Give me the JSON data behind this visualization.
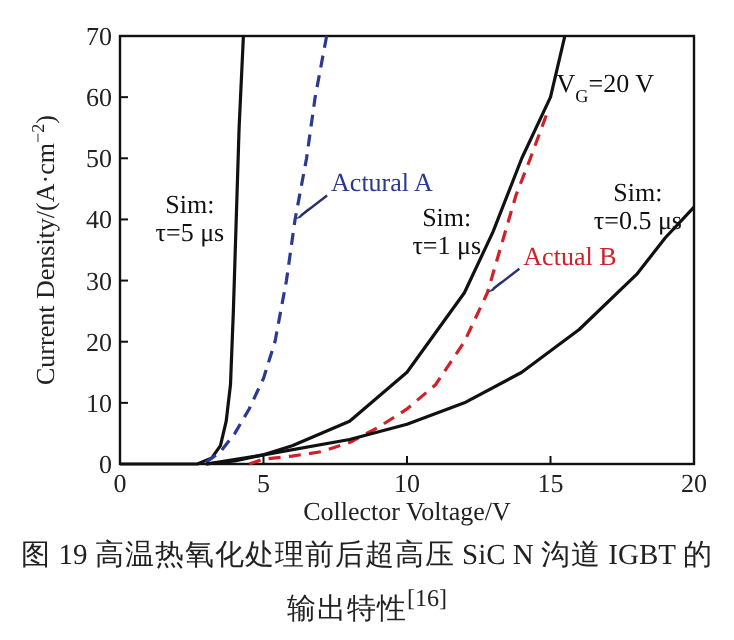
{
  "chart_data": {
    "type": "line",
    "title": "图 19  高温热氧化处理前后超高压 SiC N 沟道 IGBT 的输出特性$^{[16]}$",
    "xlabel": "Collector Voltage/V",
    "ylabel": "Current Density/(A·cm$^{−2}$)",
    "xlim": [
      0,
      20
    ],
    "ylim": [
      0,
      70
    ],
    "xticks": [
      0,
      5,
      10,
      15,
      20
    ],
    "yticks": [
      0,
      10,
      20,
      30,
      40,
      50,
      60,
      70
    ],
    "series": [
      {
        "name": "Sim:\nτ=5 μs",
        "color": "#111111",
        "line_style": "solid",
        "x": [
          0,
          2.7,
          3.2,
          3.5,
          3.7,
          3.85,
          3.95,
          4.05,
          4.15,
          4.3
        ],
        "values": [
          0,
          0,
          1,
          3,
          7,
          13,
          25,
          40,
          55,
          70
        ]
      },
      {
        "name": "Actural A",
        "color": "#2b3990",
        "line_style": "dashed",
        "x": [
          3,
          3.5,
          4,
          4.5,
          5,
          5.4,
          5.8,
          6.1,
          6.5,
          6.8,
          7.2
        ],
        "values": [
          0.3,
          2,
          5,
          9,
          14,
          20,
          30,
          40,
          50,
          60,
          70
        ]
      },
      {
        "name": "Sim:\nτ=1 μs",
        "color": "#111111",
        "line_style": "solid",
        "x": [
          3,
          4,
          5,
          6,
          8,
          10,
          12,
          13,
          14,
          15,
          15.5
        ],
        "values": [
          0,
          0.5,
          1.5,
          3,
          7,
          15,
          28,
          38,
          50,
          60,
          70
        ]
      },
      {
        "name": "Actual B",
        "color": "#d0202a",
        "line_style": "dashed",
        "x": [
          4.5,
          5,
          6,
          7,
          8,
          9,
          10,
          11,
          12,
          12.8,
          13.3,
          13.8,
          14.3,
          14.85
        ],
        "values": [
          0,
          0.8,
          1.3,
          2,
          3.5,
          6,
          9,
          13,
          20,
          28,
          36,
          44,
          50,
          57
        ]
      },
      {
        "name": "Sim:\nτ=0.5 μs",
        "color": "#111111",
        "line_style": "solid",
        "x": [
          3,
          5,
          8,
          10,
          12,
          14,
          16,
          18,
          19,
          20
        ],
        "values": [
          0,
          1.5,
          4,
          6.5,
          10,
          15,
          22,
          31,
          37,
          42
        ]
      }
    ],
    "annotations": [
      "V$_{G}$=20 V"
    ]
  }
}
